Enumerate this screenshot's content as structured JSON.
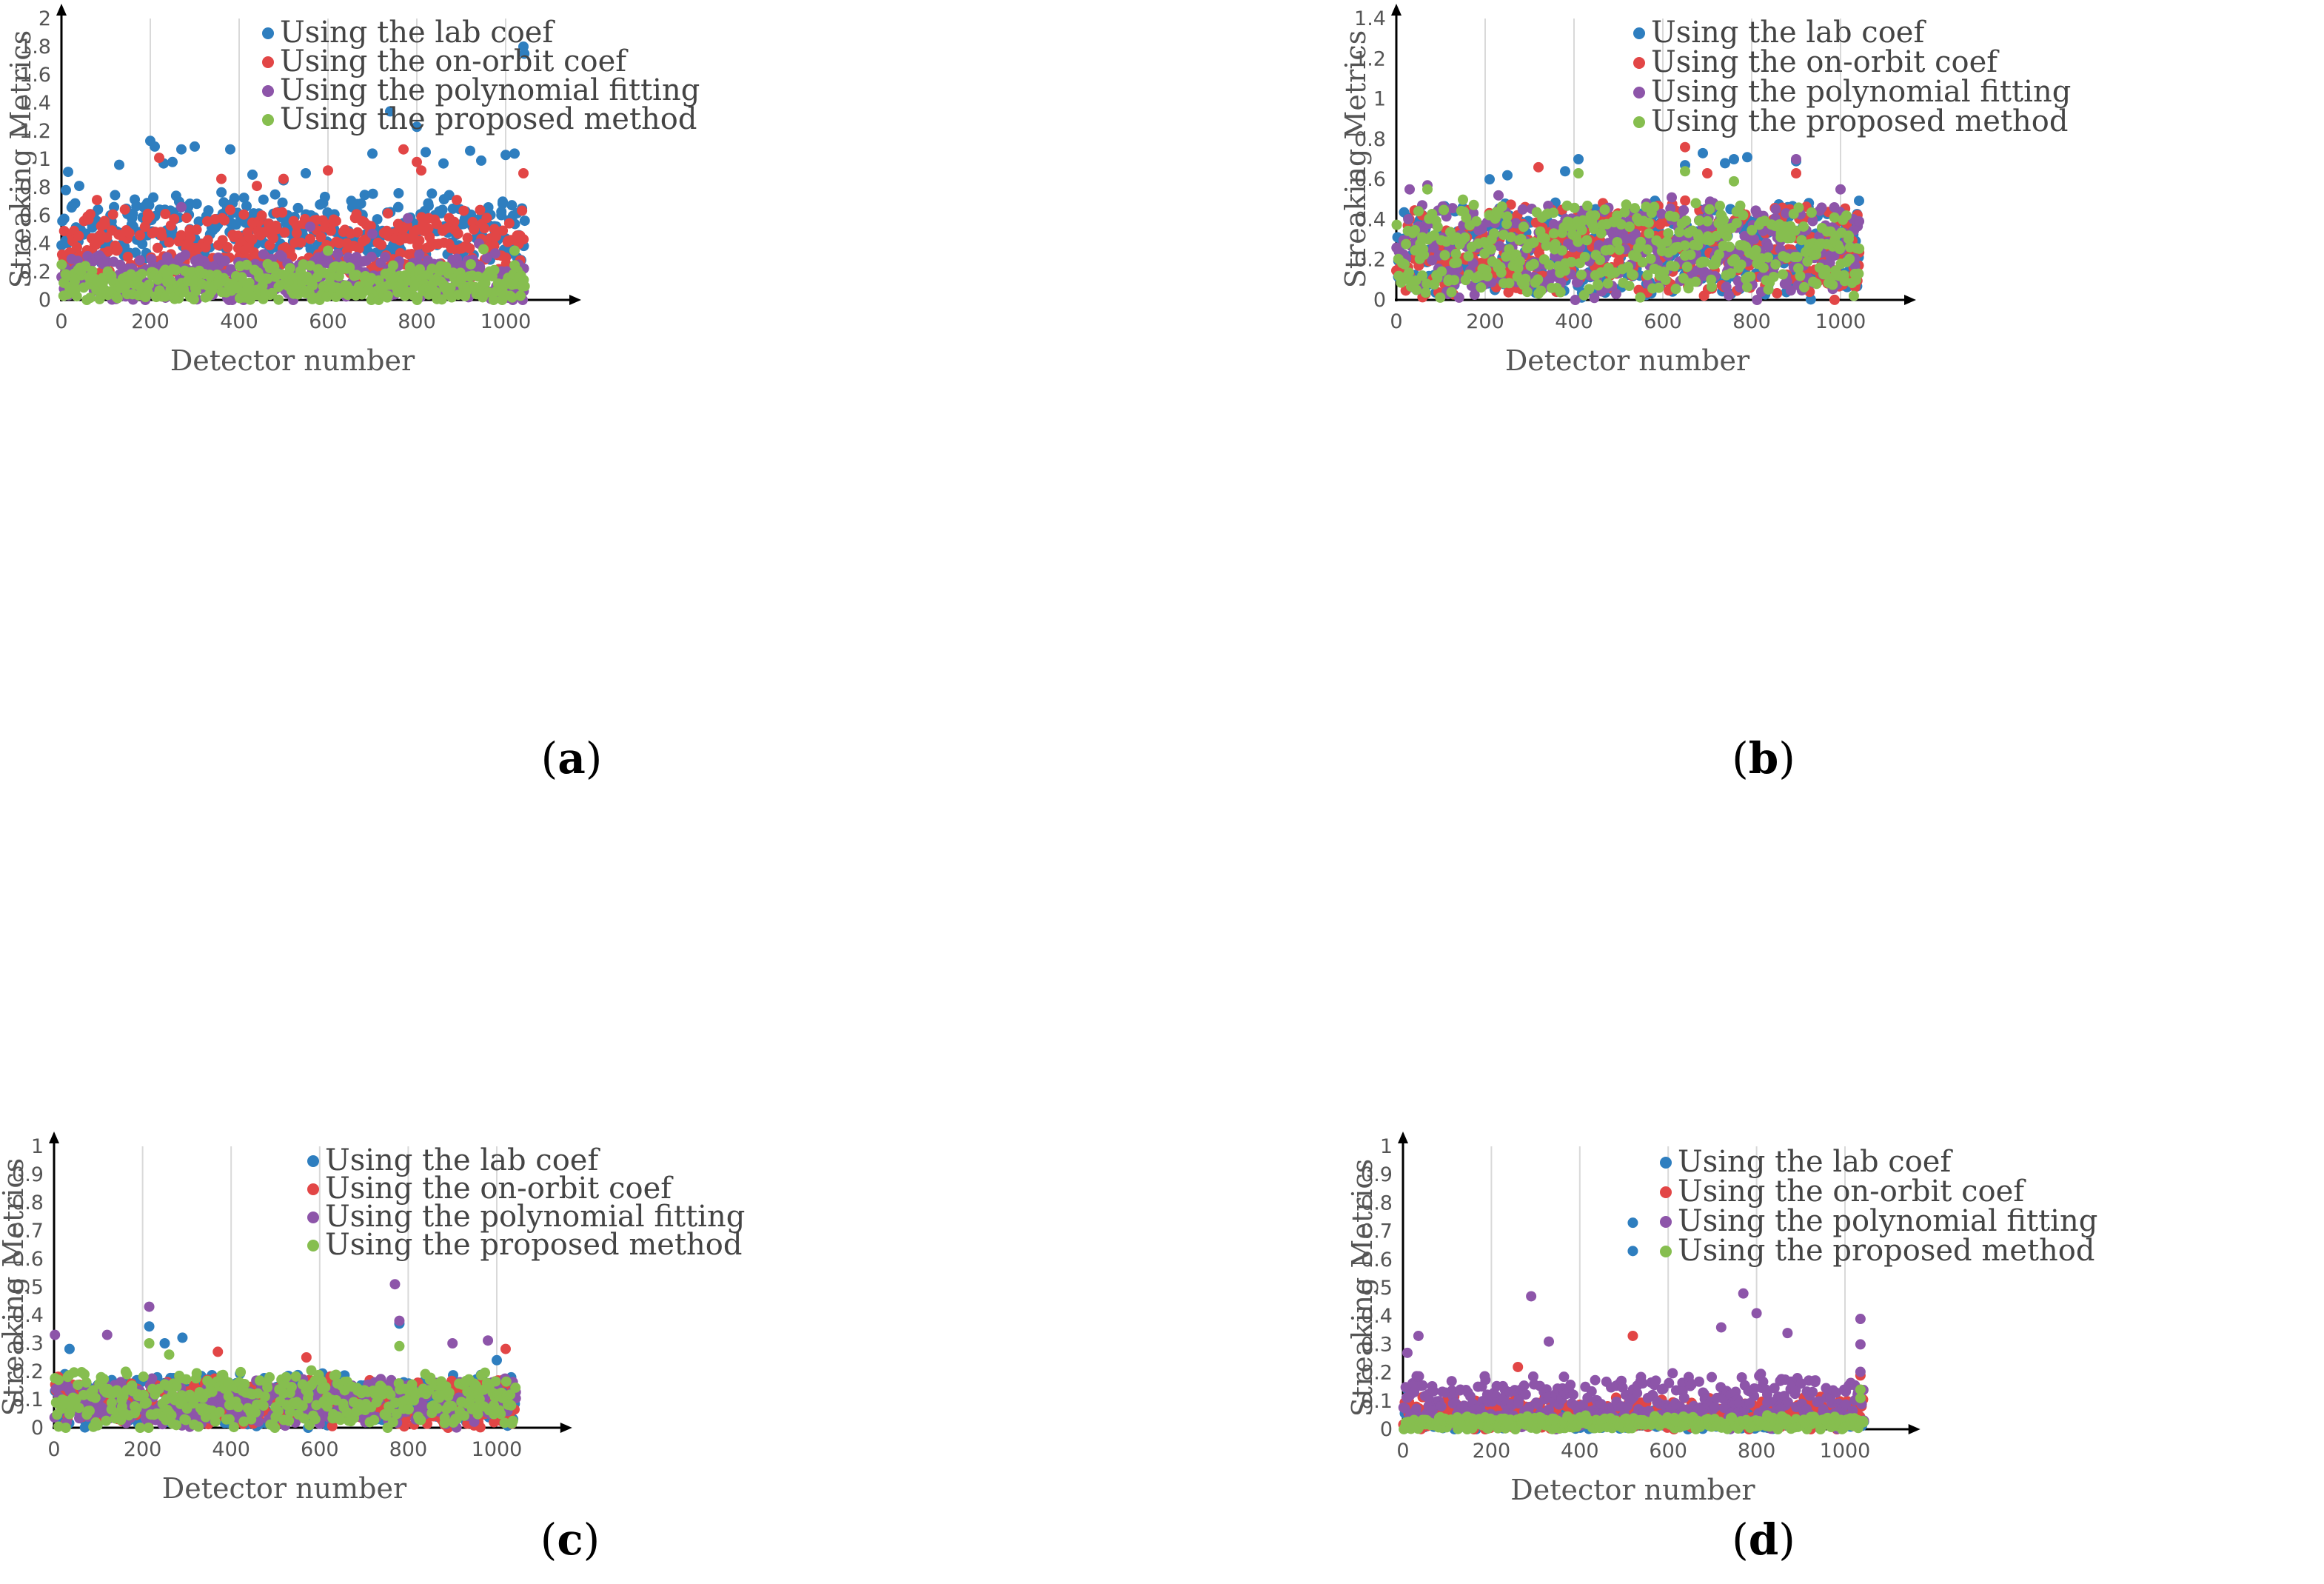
{
  "colors": {
    "lab": "#2e7ebf",
    "onorbit": "#e24646",
    "poly": "#8d55a9",
    "proposed": "#86be4f"
  },
  "chart_data": [
    {
      "id": "a",
      "caption": "a",
      "type": "scatter",
      "xlabel": "Detector number",
      "ylabel": "Streaking  Metrics",
      "xlim": [
        0,
        1100
      ],
      "ylim": [
        0,
        2
      ],
      "xticks": [
        "0",
        "200",
        "400",
        "600",
        "800",
        "1000"
      ],
      "yticks": [
        "0",
        "0.2",
        "0.4",
        "0.6",
        "0.8",
        "1",
        "1.2",
        "1.4",
        "1.6",
        "1.8",
        "2"
      ],
      "grid": true,
      "legend": "top-right",
      "series": [
        {
          "name": "Using the lab coef",
          "color": "lab",
          "baseline": {
            "min": 0.3,
            "max": 0.7,
            "noise": 0.15,
            "seed": 11
          },
          "outliers": [
            [
              2,
              0.56
            ],
            [
              10,
              0.78
            ],
            [
              15,
              0.91
            ],
            [
              25,
              0.67
            ],
            [
              40,
              0.81
            ],
            [
              130,
              0.96
            ],
            [
              200,
              1.13
            ],
            [
              210,
              1.09
            ],
            [
              230,
              0.97
            ],
            [
              250,
              0.98
            ],
            [
              270,
              1.07
            ],
            [
              300,
              1.09
            ],
            [
              380,
              1.07
            ],
            [
              430,
              0.89
            ],
            [
              500,
              0.85
            ],
            [
              550,
              0.9
            ],
            [
              700,
              1.04
            ],
            [
              740,
              1.34
            ],
            [
              800,
              1.23
            ],
            [
              820,
              1.05
            ],
            [
              860,
              0.97
            ],
            [
              920,
              1.06
            ],
            [
              945,
              0.99
            ],
            [
              1000,
              1.03
            ],
            [
              1020,
              1.04
            ],
            [
              1040,
              1.8
            ],
            [
              1042,
              1.75
            ]
          ]
        },
        {
          "name": "Using the on-orbit coef",
          "color": "onorbit",
          "baseline": {
            "min": 0.15,
            "max": 0.6,
            "noise": 0.12,
            "seed": 23
          },
          "outliers": [
            [
              80,
              0.71
            ],
            [
              220,
              1.01
            ],
            [
              360,
              0.86
            ],
            [
              380,
              0.64
            ],
            [
              440,
              0.81
            ],
            [
              500,
              0.86
            ],
            [
              600,
              0.92
            ],
            [
              770,
              1.07
            ],
            [
              800,
              0.98
            ],
            [
              810,
              0.92
            ],
            [
              890,
              0.71
            ],
            [
              1040,
              0.9
            ]
          ]
        },
        {
          "name": "Using the polynomial fitting",
          "color": "poly",
          "baseline": {
            "min": 0.02,
            "max": 0.3,
            "noise": 0.1,
            "seed": 37
          },
          "outliers": [
            [
              270,
              0.66
            ],
            [
              560,
              0.52
            ],
            [
              700,
              0.47
            ],
            [
              780,
              0.58
            ],
            [
              940,
              0.4
            ]
          ]
        },
        {
          "name": "Using the proposed method",
          "color": "proposed",
          "baseline": {
            "min": 0.01,
            "max": 0.22,
            "noise": 0.08,
            "seed": 41
          },
          "outliers": [
            [
              600,
              0.35
            ],
            [
              950,
              0.36
            ],
            [
              1020,
              0.35
            ]
          ]
        }
      ]
    },
    {
      "id": "b",
      "caption": "b",
      "type": "scatter",
      "xlabel": "Detector number",
      "ylabel": "Streaking  Metrics",
      "xlim": [
        0,
        1100
      ],
      "ylim": [
        0,
        1.4
      ],
      "xticks": [
        "0",
        "200",
        "400",
        "600",
        "800",
        "1000"
      ],
      "yticks": [
        "0",
        "0.2",
        "0.4",
        "0.6",
        "0.8",
        "1",
        "1.2",
        "1.4"
      ],
      "grid": true,
      "legend": "top-right",
      "series": [
        {
          "name": "Using the lab coef",
          "color": "lab",
          "baseline": {
            "min": 0.05,
            "max": 0.45,
            "noise": 0.12,
            "seed": 5
          },
          "outliers": [
            [
              210,
              0.6
            ],
            [
              250,
              0.62
            ],
            [
              380,
              0.64
            ],
            [
              410,
              0.7
            ],
            [
              650,
              0.67
            ],
            [
              690,
              0.73
            ],
            [
              740,
              0.68
            ],
            [
              760,
              0.7
            ],
            [
              790,
              0.71
            ],
            [
              900,
              0.69
            ]
          ]
        },
        {
          "name": "Using the on-orbit coef",
          "color": "onorbit",
          "baseline": {
            "min": 0.05,
            "max": 0.45,
            "noise": 0.12,
            "seed": 9
          },
          "outliers": [
            [
              320,
              0.66
            ],
            [
              650,
              0.76
            ],
            [
              700,
              0.63
            ],
            [
              900,
              0.63
            ]
          ]
        },
        {
          "name": "Using the polynomial fitting",
          "color": "poly",
          "baseline": {
            "min": 0.05,
            "max": 0.45,
            "noise": 0.12,
            "seed": 13
          },
          "outliers": [
            [
              30,
              0.55
            ],
            [
              70,
              0.57
            ],
            [
              230,
              0.52
            ],
            [
              620,
              0.51
            ],
            [
              900,
              0.7
            ],
            [
              1000,
              0.55
            ]
          ]
        },
        {
          "name": "Using the proposed method",
          "color": "proposed",
          "baseline": {
            "min": 0.05,
            "max": 0.45,
            "noise": 0.12,
            "seed": 17
          },
          "outliers": [
            [
              70,
              0.55
            ],
            [
              410,
              0.63
            ],
            [
              650,
              0.64
            ],
            [
              760,
              0.59
            ]
          ]
        }
      ]
    },
    {
      "id": "c",
      "caption": "c",
      "type": "scatter",
      "xlabel": "Detector number",
      "ylabel": "Streaking  Metrics",
      "xlim": [
        0,
        1100
      ],
      "ylim": [
        0,
        1
      ],
      "xticks": [
        "0",
        "200",
        "400",
        "600",
        "800",
        "1000"
      ],
      "yticks": [
        "0",
        "0.1",
        "0.2",
        "0.3",
        "0.4",
        "0.5",
        "0.6",
        "0.7",
        "0.8",
        "0.9",
        "1"
      ],
      "grid": true,
      "legend": "top-right",
      "series": [
        {
          "name": "Using the lab coef",
          "color": "lab",
          "baseline": {
            "min": 0.02,
            "max": 0.18,
            "noise": 0.06,
            "seed": 3
          },
          "outliers": [
            [
              35,
              0.28
            ],
            [
              215,
              0.36
            ],
            [
              250,
              0.3
            ],
            [
              290,
              0.32
            ],
            [
              780,
              0.37
            ],
            [
              1000,
              0.24
            ]
          ]
        },
        {
          "name": "Using the on-orbit coef",
          "color": "onorbit",
          "baseline": {
            "min": 0.02,
            "max": 0.16,
            "noise": 0.05,
            "seed": 7
          },
          "outliers": [
            [
              370,
              0.27
            ],
            [
              570,
              0.25
            ],
            [
              1020,
              0.28
            ]
          ]
        },
        {
          "name": "Using the polynomial fitting",
          "color": "poly",
          "baseline": {
            "min": 0.02,
            "max": 0.16,
            "noise": 0.05,
            "seed": 19
          },
          "outliers": [
            [
              2,
              0.33
            ],
            [
              120,
              0.33
            ],
            [
              215,
              0.43
            ],
            [
              770,
              0.51
            ],
            [
              780,
              0.38
            ],
            [
              900,
              0.3
            ],
            [
              980,
              0.31
            ]
          ]
        },
        {
          "name": "Using the proposed method",
          "color": "proposed",
          "baseline": {
            "min": 0.02,
            "max": 0.18,
            "noise": 0.06,
            "seed": 29
          },
          "outliers": [
            [
              215,
              0.3
            ],
            [
              260,
              0.26
            ],
            [
              780,
              0.29
            ]
          ]
        }
      ]
    },
    {
      "id": "d",
      "caption": "d",
      "type": "scatter",
      "xlabel": "Detector number",
      "ylabel": "Streaking  Metrics",
      "xlim": [
        0,
        1100
      ],
      "ylim": [
        0,
        1
      ],
      "xticks": [
        "0",
        "200",
        "400",
        "600",
        "800",
        "1000"
      ],
      "yticks": [
        "0",
        "0.1",
        "0.2",
        "0.3",
        "0.4",
        "0.5",
        "0.6",
        "0.7",
        "0.8",
        "0.9",
        "1"
      ],
      "grid": true,
      "legend": "top-right",
      "series": [
        {
          "name": "Using the lab coef",
          "color": "lab",
          "baseline": {
            "min": 0.01,
            "max": 0.06,
            "noise": 0.03,
            "seed": 31
          },
          "outliers": [
            [
              520,
              0.73
            ],
            [
              520,
              0.63
            ],
            [
              10,
              0.14
            ]
          ]
        },
        {
          "name": "Using the on-orbit coef",
          "color": "onorbit",
          "baseline": {
            "min": 0.01,
            "max": 0.1,
            "noise": 0.04,
            "seed": 43
          },
          "outliers": [
            [
              520,
              0.33
            ],
            [
              260,
              0.22
            ],
            [
              1035,
              0.19
            ]
          ]
        },
        {
          "name": "Using the polynomial fitting",
          "color": "poly",
          "baseline": {
            "min": 0.02,
            "max": 0.18,
            "noise": 0.06,
            "seed": 47
          },
          "outliers": [
            [
              10,
              0.27
            ],
            [
              35,
              0.33
            ],
            [
              290,
              0.47
            ],
            [
              330,
              0.31
            ],
            [
              720,
              0.36
            ],
            [
              770,
              0.48
            ],
            [
              800,
              0.41
            ],
            [
              870,
              0.34
            ],
            [
              1035,
              0.39
            ],
            [
              1035,
              0.3
            ]
          ]
        },
        {
          "name": "Using the proposed method",
          "color": "proposed",
          "baseline": {
            "min": 0.005,
            "max": 0.04,
            "noise": 0.02,
            "seed": 53
          },
          "outliers": [
            [
              1035,
              0.14
            ],
            [
              1035,
              0.11
            ]
          ]
        }
      ]
    }
  ]
}
